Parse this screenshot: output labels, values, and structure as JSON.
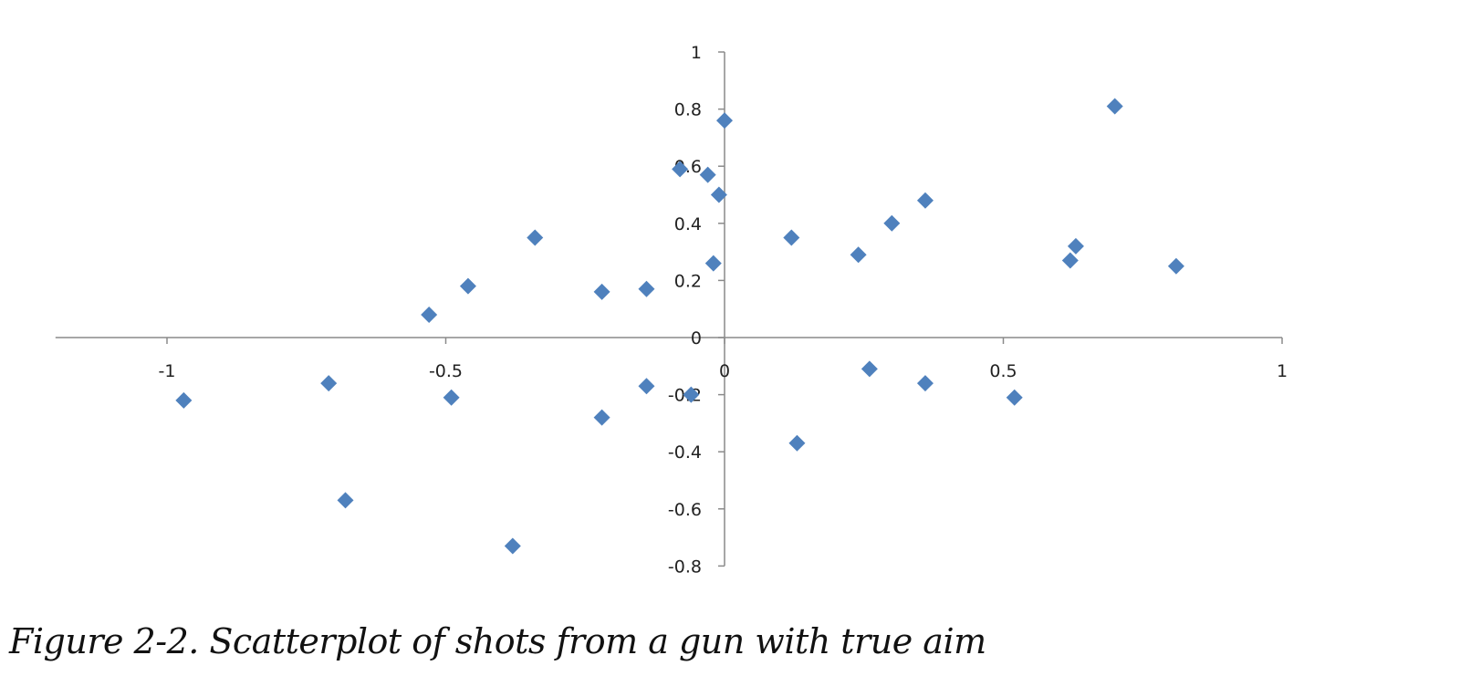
{
  "caption": "Figure 2-2. Scatterplot of shots from a gun with true aim",
  "chart_data": {
    "type": "scatter",
    "title": "",
    "xlabel": "",
    "ylabel": "",
    "xlim": [
      -1.2,
      1
    ],
    "ylim": [
      -0.8,
      1
    ],
    "x_ticks": [
      -1,
      -0.5,
      0,
      0.5,
      1
    ],
    "y_ticks": [
      1,
      0.8,
      0.6,
      0.4,
      0.2,
      0,
      -0.2,
      -0.4,
      -0.6,
      -0.8
    ],
    "x_tick_labels": [
      "-1",
      "-0.5",
      "0",
      "0.5",
      "1"
    ],
    "y_tick_labels": [
      "1",
      "0.8",
      "0.6",
      "0.4",
      "0.2",
      "0",
      "-0.2",
      "-0.4",
      "-0.6",
      "-0.8"
    ],
    "grid": false,
    "legend": false,
    "marker": "diamond",
    "marker_color": "#4F81BD",
    "axis_color": "#8a8a8a",
    "series": [
      {
        "x": [
          0.0,
          0.7,
          -0.08,
          -0.03,
          -0.01,
          0.36,
          0.3,
          -0.34,
          0.12,
          0.24,
          0.63,
          0.62,
          0.81,
          -0.02,
          -0.46,
          -0.22,
          -0.14,
          -0.53,
          0.26,
          -0.71,
          -0.49,
          -0.97,
          0.36,
          0.52,
          -0.14,
          -0.06,
          -0.22,
          0.13,
          -0.68,
          -0.38
        ],
        "y": [
          0.76,
          0.81,
          0.59,
          0.57,
          0.5,
          0.48,
          0.4,
          0.35,
          0.35,
          0.29,
          0.32,
          0.27,
          0.25,
          0.26,
          0.18,
          0.16,
          0.17,
          0.08,
          -0.11,
          -0.16,
          -0.21,
          -0.22,
          -0.16,
          -0.21,
          -0.17,
          -0.2,
          -0.28,
          -0.37,
          -0.57,
          -0.73
        ]
      }
    ]
  }
}
